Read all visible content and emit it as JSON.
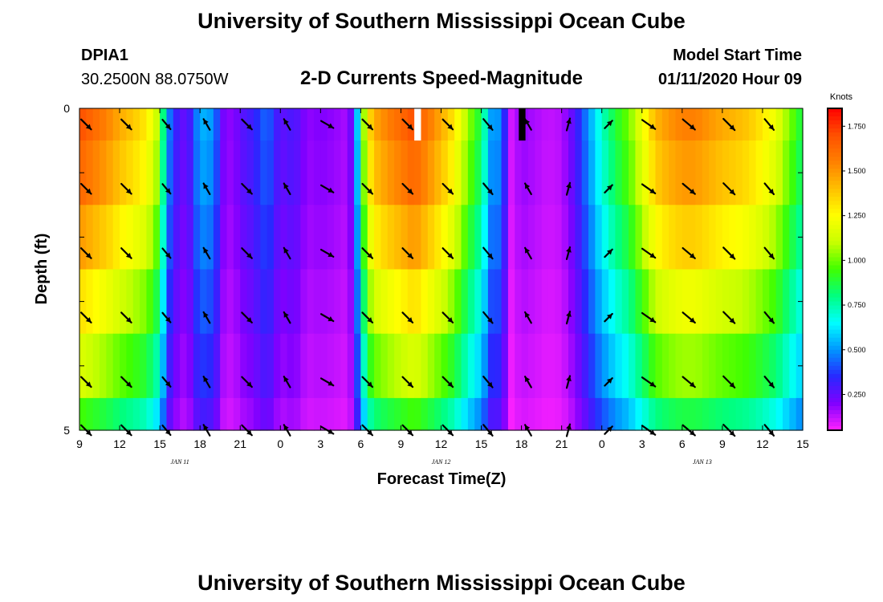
{
  "header": {
    "title": "University of Southern Mississippi Ocean Cube",
    "station_id": "DPIA1",
    "station_coords": "30.2500N 88.0750W",
    "chart_title": "2-D Currents Speed-Magnitude",
    "model_start_label": "Model Start Time",
    "model_start_value": "01/11/2020 Hour 09"
  },
  "footer": {
    "title": "University of Southern Mississippi Ocean Cube"
  },
  "colors": {
    "arrow": "#000000",
    "missing_white": "#ffffff",
    "missing_black": "#000000",
    "colormap": [
      "#ff22ff",
      "#8000ff",
      "#2828ff",
      "#0096ff",
      "#00ffff",
      "#00ff80",
      "#40ff00",
      "#c8ff00",
      "#ffff00",
      "#ffc000",
      "#ff8000",
      "#ff5000",
      "#ff0000"
    ]
  },
  "chart_data": {
    "type": "heatmap",
    "title": "2-D Currents Speed-Magnitude",
    "xlabel": "Forecast Time(Z)",
    "ylabel": "Depth (ft)",
    "colorbar_label": "Knots",
    "x_hours_start": 0,
    "x_hours_end": 54,
    "x_tick_labels": [
      "9",
      "12",
      "15",
      "18",
      "21",
      "0",
      "3",
      "6",
      "9",
      "12",
      "15",
      "18",
      "21",
      "0",
      "3",
      "6",
      "9",
      "12",
      "15"
    ],
    "date_labels": [
      "JAN 11",
      "JAN 12",
      "JAN 13"
    ],
    "y_tick_labels": [
      "0",
      "5"
    ],
    "ylim": [
      0,
      5
    ],
    "depth_rows": 5,
    "colorbar_range": [
      0.05,
      1.85
    ],
    "colorbar_ticks": [
      "1.750",
      "1.500",
      "1.250",
      "1.000",
      "0.750",
      "0.500",
      "0.250"
    ],
    "colorbar_tick_values": [
      1.75,
      1.5,
      1.25,
      1.0,
      0.75,
      0.5,
      0.25
    ],
    "speed_profile": [
      [
        0,
        1.7
      ],
      [
        1,
        1.62
      ],
      [
        2,
        1.55
      ],
      [
        3,
        1.45
      ],
      [
        4,
        1.38
      ],
      [
        5,
        1.3
      ],
      [
        6,
        1.05
      ],
      [
        6.5,
        0.55
      ],
      [
        7,
        0.35
      ],
      [
        8,
        0.22
      ],
      [
        9,
        0.55
      ],
      [
        10,
        0.5
      ],
      [
        10.8,
        0.2
      ],
      [
        11.5,
        0.18
      ],
      [
        12,
        0.26
      ],
      [
        13,
        0.32
      ],
      [
        14,
        0.45
      ],
      [
        15,
        0.25
      ],
      [
        16,
        0.3
      ],
      [
        17,
        0.18
      ],
      [
        18,
        0.2
      ],
      [
        19,
        0.18
      ],
      [
        20,
        0.15
      ],
      [
        20.5,
        0.3
      ],
      [
        21,
        0.85
      ],
      [
        21.5,
        1.28
      ],
      [
        22,
        1.45
      ],
      [
        23,
        1.55
      ],
      [
        24,
        1.62
      ],
      [
        25,
        1.7
      ],
      [
        26,
        1.58
      ],
      [
        27,
        1.45
      ],
      [
        28,
        1.3
      ],
      [
        29,
        1.05
      ],
      [
        30,
        0.85
      ],
      [
        31,
        0.4
      ],
      [
        31.5,
        0.6
      ],
      [
        32,
        0.08
      ],
      [
        33,
        0.18
      ],
      [
        34,
        0.15
      ],
      [
        35,
        0.12
      ],
      [
        36,
        0.14
      ],
      [
        37,
        0.28
      ],
      [
        38,
        0.5
      ],
      [
        39,
        0.72
      ],
      [
        40,
        0.88
      ],
      [
        41,
        1.0
      ],
      [
        42,
        1.2
      ],
      [
        43,
        1.42
      ],
      [
        44,
        1.5
      ],
      [
        45,
        1.55
      ],
      [
        46,
        1.55
      ],
      [
        47,
        1.5
      ],
      [
        48,
        1.45
      ],
      [
        49,
        1.42
      ],
      [
        50,
        1.38
      ],
      [
        51,
        1.3
      ],
      [
        52,
        1.2
      ],
      [
        53,
        1.02
      ],
      [
        54,
        0.85
      ]
    ],
    "depth_factor": [
      1.0,
      0.96,
      0.88,
      0.78,
      0.68,
      0.56
    ],
    "missing_cells": [
      {
        "hour_from": 25.0,
        "hour_to": 25.5,
        "row": 0,
        "color": "white"
      },
      {
        "hour_from": 32.8,
        "hour_to": 33.3,
        "row": 0,
        "color": "black"
      }
    ],
    "arrow_hours": [
      0.5,
      3.5,
      6.5,
      9.5,
      12.5,
      15.5,
      18.5,
      21.5,
      24.5,
      27.5,
      30.5,
      33.5,
      36.5,
      39.5,
      42.5,
      45.5,
      48.5,
      51.5
    ],
    "arrow_depths": [
      0.25,
      1.25,
      2.25,
      3.25,
      4.25,
      5.0
    ],
    "arrow_dirs_deg": [
      135,
      135,
      140,
      330,
      135,
      330,
      120,
      135,
      135,
      135,
      140,
      330,
      15,
      45,
      125,
      130,
      135,
      140
    ],
    "arrow_lengths": [
      0.8,
      0.8,
      0.7,
      0.7,
      0.8,
      0.7,
      0.8,
      0.8,
      0.8,
      0.8,
      0.8,
      0.7,
      0.7,
      0.6,
      0.9,
      0.9,
      0.9,
      0.8
    ]
  }
}
